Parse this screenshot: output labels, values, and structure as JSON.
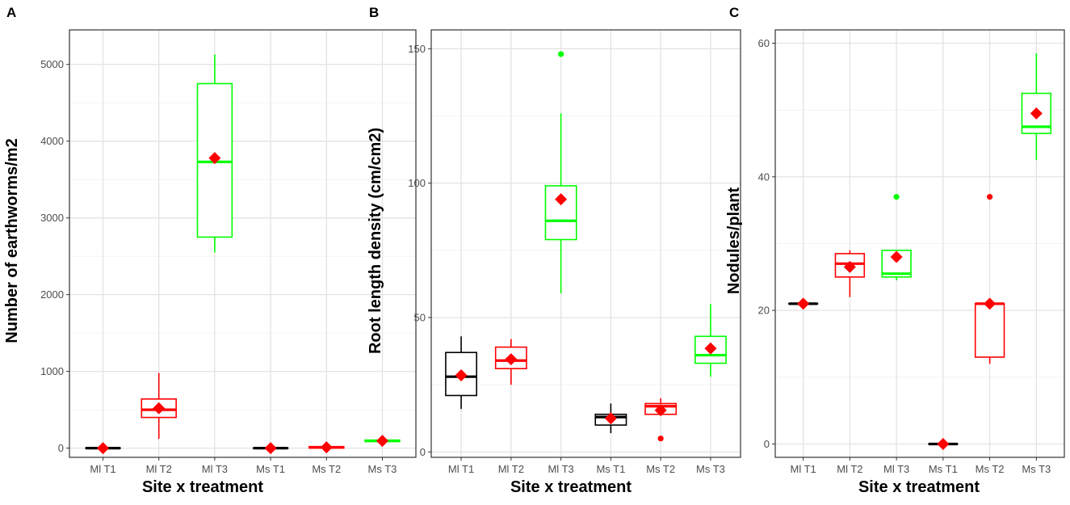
{
  "chart_data": [
    {
      "type": "boxplot",
      "panel": "A",
      "title": "",
      "xlabel": "Site x treatment",
      "ylabel": "Number of earthworms/m2",
      "categories": [
        "Ml T1",
        "Ml T2",
        "Ml T3",
        "Ms T1",
        "Ms T2",
        "Ms T3"
      ],
      "ylim": [
        -120,
        5450
      ],
      "yticks": [
        0,
        1000,
        2000,
        3000,
        4000,
        5000
      ],
      "colors": {
        "T1": "#000000",
        "T2": "#ff0000",
        "T3": "#00ff00",
        "mean": "#ff0000"
      },
      "boxes": [
        {
          "category": "Ml T1",
          "color": "#000000",
          "q1": 0,
          "median": 0,
          "q3": 0,
          "whisker_low": 0,
          "whisker_high": 0,
          "mean": 0,
          "outliers": []
        },
        {
          "category": "Ml T2",
          "color": "#ff0000",
          "q1": 400,
          "median": 500,
          "q3": 640,
          "whisker_low": 120,
          "whisker_high": 980,
          "mean": 520,
          "outliers": []
        },
        {
          "category": "Ml T3",
          "color": "#00ff00",
          "q1": 2750,
          "median": 3730,
          "q3": 4750,
          "whisker_low": 2550,
          "whisker_high": 5130,
          "mean": 3780,
          "outliers": []
        },
        {
          "category": "Ms T1",
          "color": "#000000",
          "q1": 0,
          "median": 0,
          "q3": 0,
          "whisker_low": 0,
          "whisker_high": 0,
          "mean": 0,
          "outliers": []
        },
        {
          "category": "Ms T2",
          "color": "#ff0000",
          "q1": 0,
          "median": 10,
          "q3": 20,
          "whisker_low": 0,
          "whisker_high": 20,
          "mean": 10,
          "outliers": []
        },
        {
          "category": "Ms T3",
          "color": "#00ff00",
          "q1": 85,
          "median": 95,
          "q3": 105,
          "whisker_low": 85,
          "whisker_high": 110,
          "mean": 95,
          "outliers": []
        }
      ]
    },
    {
      "type": "boxplot",
      "panel": "B",
      "title": "",
      "xlabel": "Site x treatment",
      "ylabel": "Root length density (cm/cm2)",
      "categories": [
        "Ml T1",
        "Ml T2",
        "Ml T3",
        "Ms T1",
        "Ms T2",
        "Ms T3"
      ],
      "ylim": [
        -2,
        157
      ],
      "yticks": [
        0,
        50,
        100,
        150
      ],
      "colors": {
        "T1": "#000000",
        "T2": "#ff0000",
        "T3": "#00ff00",
        "mean": "#ff0000"
      },
      "boxes": [
        {
          "category": "Ml T1",
          "color": "#000000",
          "q1": 21,
          "median": 28,
          "q3": 37,
          "whisker_low": 16,
          "whisker_high": 43,
          "mean": 28.5,
          "outliers": []
        },
        {
          "category": "Ml T2",
          "color": "#ff0000",
          "q1": 31,
          "median": 34,
          "q3": 39,
          "whisker_low": 25,
          "whisker_high": 42,
          "mean": 34.5,
          "outliers": []
        },
        {
          "category": "Ml T3",
          "color": "#00ff00",
          "q1": 79,
          "median": 86,
          "q3": 99,
          "whisker_low": 59,
          "whisker_high": 126,
          "mean": 94,
          "outliers": [
            148
          ]
        },
        {
          "category": "Ms T1",
          "color": "#000000",
          "q1": 10,
          "median": 13,
          "q3": 14,
          "whisker_low": 7,
          "whisker_high": 18,
          "mean": 12.5,
          "outliers": []
        },
        {
          "category": "Ms T2",
          "color": "#ff0000",
          "q1": 14,
          "median": 17,
          "q3": 18,
          "whisker_low": 14,
          "whisker_high": 20,
          "mean": 15.5,
          "outliers": [
            5
          ]
        },
        {
          "category": "Ms T3",
          "color": "#00ff00",
          "q1": 33,
          "median": 36,
          "q3": 43,
          "whisker_low": 28,
          "whisker_high": 55,
          "mean": 38.5,
          "outliers": []
        }
      ]
    },
    {
      "type": "boxplot",
      "panel": "C",
      "title": "",
      "xlabel": "Site x treatment",
      "ylabel": "Nodules/plant",
      "categories": [
        "Ml T1",
        "Ml T2",
        "Ml T3",
        "Ms T1",
        "Ms T2",
        "Ms T3"
      ],
      "ylim": [
        -2,
        62
      ],
      "yticks": [
        0,
        20,
        40,
        60
      ],
      "colors": {
        "T1": "#000000",
        "T2": "#ff0000",
        "T3": "#00ff00",
        "mean": "#ff0000"
      },
      "boxes": [
        {
          "category": "Ml T1",
          "color": "#000000",
          "q1": 21,
          "median": 21,
          "q3": 21,
          "whisker_low": 21,
          "whisker_high": 21,
          "mean": 21,
          "outliers": []
        },
        {
          "category": "Ml T2",
          "color": "#ff0000",
          "q1": 25,
          "median": 27,
          "q3": 28.5,
          "whisker_low": 22,
          "whisker_high": 29,
          "mean": 26.5,
          "outliers": []
        },
        {
          "category": "Ml T3",
          "color": "#00ff00",
          "q1": 25,
          "median": 25.5,
          "q3": 29,
          "whisker_low": 24.5,
          "whisker_high": 29,
          "mean": 28,
          "outliers": [
            37
          ]
        },
        {
          "category": "Ms T1",
          "color": "#000000",
          "q1": 0,
          "median": 0,
          "q3": 0,
          "whisker_low": 0,
          "whisker_high": 0,
          "mean": 0,
          "outliers": []
        },
        {
          "category": "Ms T2",
          "color": "#ff0000",
          "q1": 13,
          "median": 21,
          "q3": 21,
          "whisker_low": 12,
          "whisker_high": 21,
          "mean": 21,
          "outliers": [
            37
          ]
        },
        {
          "category": "Ms T3",
          "color": "#00ff00",
          "q1": 46.5,
          "median": 47.5,
          "q3": 52.5,
          "whisker_low": 42.5,
          "whisker_high": 58.5,
          "mean": 49.5,
          "outliers": []
        }
      ]
    }
  ]
}
